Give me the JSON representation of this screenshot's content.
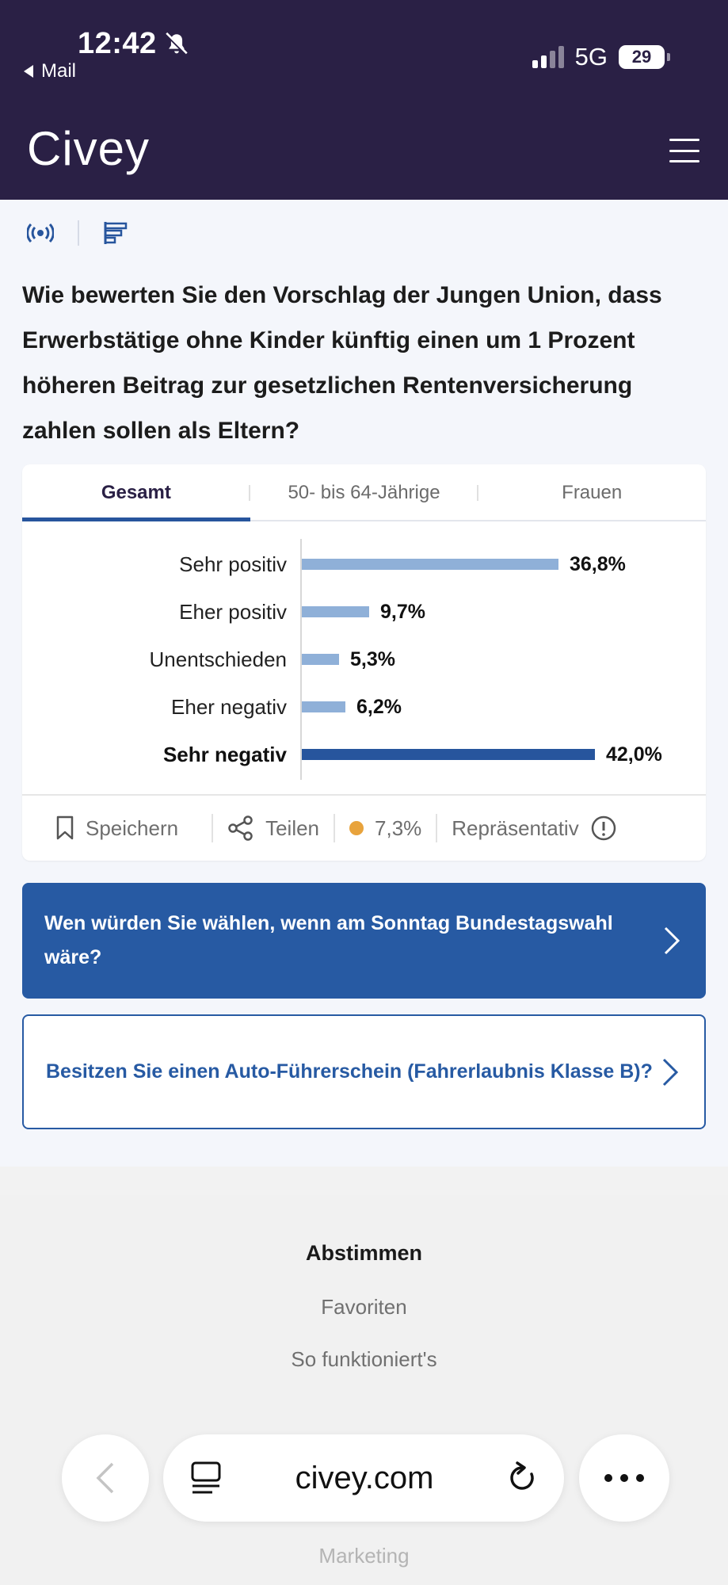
{
  "status_bar": {
    "time": "12:42",
    "back_app": "Mail",
    "network": "5G",
    "battery": "29"
  },
  "header": {
    "logo": "Civey"
  },
  "question": "Wie bewerten Sie den Vorschlag der Jungen Union, dass Erwerbstätige ohne Kinder künftig einen um 1 Prozent höheren Beitrag zur gesetzlichen Rentenversicherung zahlen sollen als Eltern?",
  "tabs": [
    {
      "label": "Gesamt",
      "active": true
    },
    {
      "label": "50- bis 64-Jährige",
      "active": false
    },
    {
      "label": "Frauen",
      "active": false
    }
  ],
  "chart_data": {
    "type": "bar",
    "orientation": "horizontal",
    "categories": [
      "Sehr positiv",
      "Eher positiv",
      "Unentschieden",
      "Eher negativ",
      "Sehr negativ"
    ],
    "values": [
      36.8,
      9.7,
      5.3,
      6.2,
      42.0
    ],
    "value_labels": [
      "36,8%",
      "9,7%",
      "5,3%",
      "6,2%",
      "42,0%"
    ],
    "highlighted_category": "Sehr negativ",
    "colors": {
      "bar": "#8fb0d8",
      "highlight": "#27559d"
    }
  },
  "card_footer": {
    "save": "Speichern",
    "share": "Teilen",
    "error_margin": "7,3%",
    "representative": "Repräsentativ",
    "error_dot_color": "#e8a33c"
  },
  "cta": [
    {
      "text": "Wen würden Sie wählen, wenn am Sonntag Bundestagswahl wäre?"
    },
    {
      "text": "Besitzen Sie einen Auto-Führerschein (Fahrerlaubnis Klasse B)?"
    }
  ],
  "footer": {
    "title": "Abstimmen",
    "links": [
      "Favoriten",
      "So funktioniert's"
    ],
    "partial_link": "Marketing"
  },
  "browser": {
    "url": "civey.com"
  }
}
